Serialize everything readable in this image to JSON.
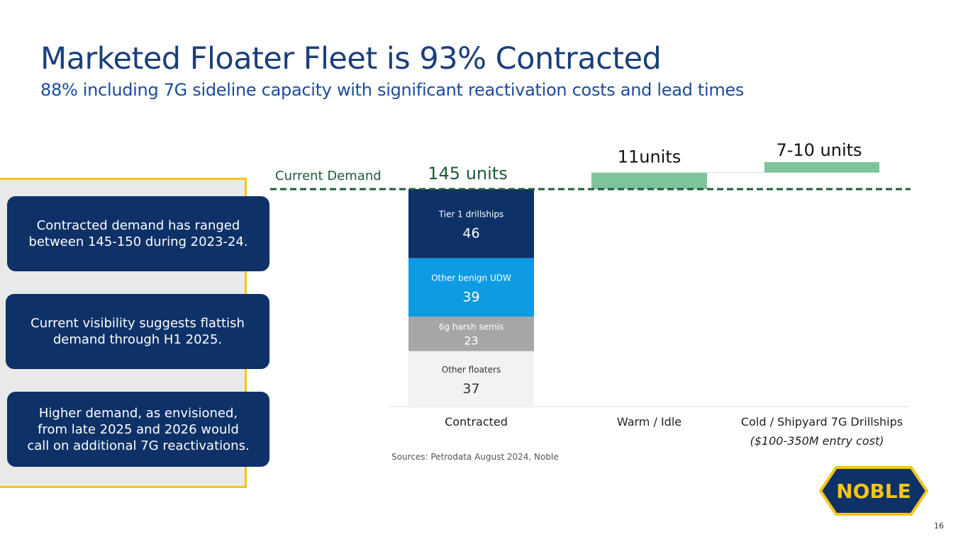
{
  "title": "Marketed Floater Fleet is 93% Contracted",
  "subtitle": "88% including 7G sideline capacity with significant reactivation costs and lead times",
  "callouts": [
    {
      "line1": "Contracted demand has ranged",
      "line2": "between 145-150 during 2023-24.",
      "line3": ""
    },
    {
      "line1": "Current visibility suggests flattish",
      "line2": "demand through H1 2025.",
      "line3": ""
    },
    {
      "line1": "Higher demand, as envisioned,",
      "line2": "from late 2025 and 2026 would",
      "line3": "call on additional 7G reactivations."
    }
  ],
  "chart_data": {
    "type": "bar",
    "stacked": true,
    "title": "",
    "categories": [
      "Contracted",
      "Warm / Idle",
      "Cold / Shipyard 7G Drillships"
    ],
    "category_sublabels": [
      "",
      "",
      "($100-350M entry cost)"
    ],
    "contracted_segments": [
      {
        "name": "Other floaters",
        "value": 37,
        "color": "#f2f2f2",
        "text_color": "#333333"
      },
      {
        "name": "6g harsh semis",
        "value": 23,
        "color": "#a6a6a6",
        "text_color": "#ffffff"
      },
      {
        "name": "Other benign UDW",
        "value": 39,
        "color": "#0d9be3",
        "text_color": "#ffffff"
      },
      {
        "name": "Tier 1 drillships",
        "value": 46,
        "color": "#0e3168",
        "text_color": "#ffffff"
      }
    ],
    "contracted_total_label": "145 units",
    "warm_idle": {
      "value": 11,
      "label": "11units",
      "color": "#7dc49b"
    },
    "cold_shipyard": {
      "range": [
        7,
        10
      ],
      "label": "7-10 units",
      "color": "#7dc49b"
    },
    "reference_line": {
      "value": 145,
      "label": "Current Demand",
      "color": "#1e5a36"
    },
    "ylim": [
      0,
      170
    ]
  },
  "source": "Sources: Petrodata August 2024, Noble",
  "logo_text": "NOBLE",
  "page_number": "16"
}
